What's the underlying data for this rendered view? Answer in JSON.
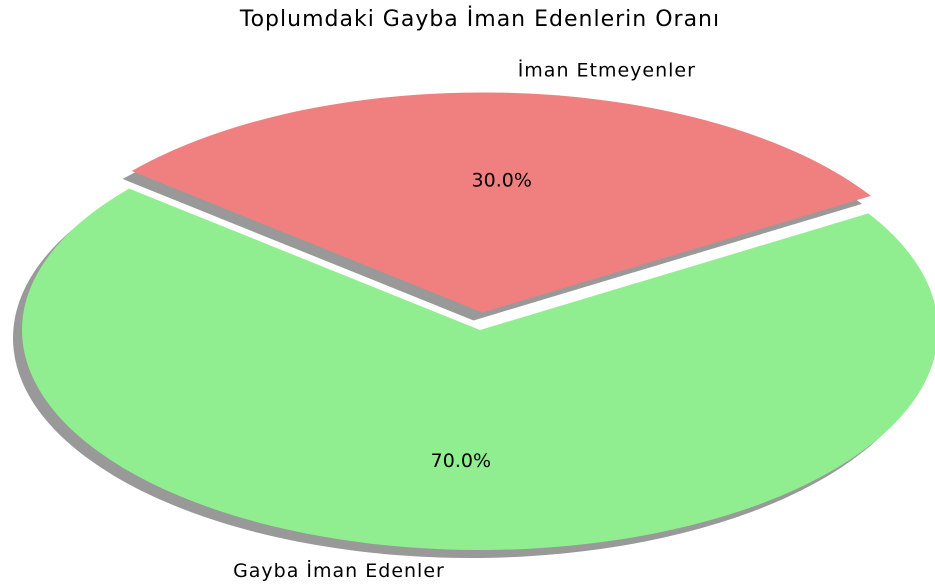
{
  "chart_data": {
    "type": "pie",
    "title": "Toplumdaki Gayba İman Edenlerin Oranı",
    "categories": [
      "Gayba İman Edenler",
      "İman Etmeyenler"
    ],
    "values": [
      70,
      30
    ],
    "value_labels": [
      "70.0%",
      "30.0%"
    ],
    "colors": [
      "#90ee90",
      "#f08080"
    ],
    "explode": [
      0,
      0.1
    ],
    "startangle": 140,
    "shadow": true
  }
}
